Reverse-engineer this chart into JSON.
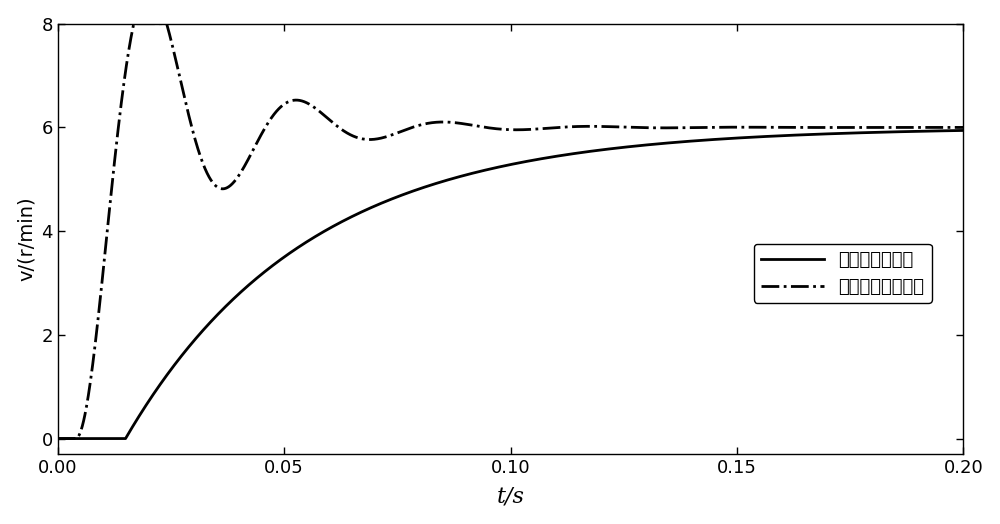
{
  "title": "",
  "xlabel": "t/s",
  "ylabel": "v/(r/min)",
  "xlim": [
    0.0,
    0.2
  ],
  "ylim": [
    -0.3,
    8
  ],
  "xticks": [
    0.0,
    0.05,
    0.1,
    0.15,
    0.2
  ],
  "yticks": [
    0,
    2,
    4,
    6,
    8
  ],
  "legend1": "本发明速度响应",
  "legend2": "现有技术速度响应",
  "line_color": "#000000",
  "bg_color": "#ffffff",
  "figsize": [
    10.0,
    5.24
  ],
  "dpi": 100
}
